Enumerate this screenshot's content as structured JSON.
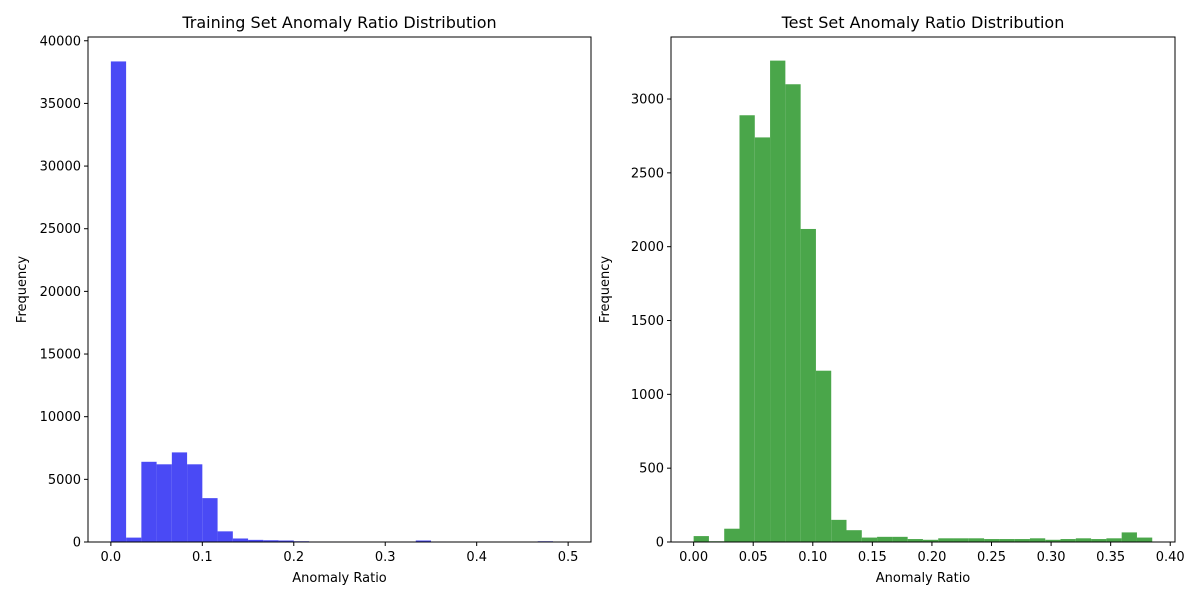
{
  "colors": {
    "train": "#4a4af5",
    "test": "#4aa64a",
    "axis": "#000000"
  },
  "chart_data": [
    {
      "type": "bar",
      "title": "Training Set Anomaly Ratio Distribution",
      "xlabel": "Anomaly Ratio",
      "ylabel": "Frequency",
      "xlim": [
        -0.025,
        0.525
      ],
      "ylim": [
        0,
        40300
      ],
      "xticks": [
        0.0,
        0.1,
        0.2,
        0.3,
        0.4,
        0.5
      ],
      "xtick_labels": [
        "0.0",
        "0.1",
        "0.2",
        "0.3",
        "0.4",
        "0.5"
      ],
      "yticks": [
        0,
        5000,
        10000,
        15000,
        20000,
        25000,
        30000,
        35000,
        40000
      ],
      "ytick_labels": [
        "0",
        "5000",
        "10000",
        "15000",
        "20000",
        "25000",
        "30000",
        "35000",
        "40000"
      ],
      "bin_start": 0.0,
      "bin_width": 0.01667,
      "values": [
        38350,
        350,
        6400,
        6200,
        7150,
        6200,
        3500,
        850,
        280,
        170,
        140,
        120,
        60,
        40,
        40,
        30,
        30,
        30,
        30,
        40,
        120,
        40,
        20,
        15,
        10,
        10,
        10,
        10,
        60,
        5
      ],
      "color": "#4a4af5"
    },
    {
      "type": "bar",
      "title": "Test Set Anomaly Ratio Distribution",
      "xlabel": "Anomaly Ratio",
      "ylabel": "Frequency",
      "xlim": [
        -0.019,
        0.404
      ],
      "ylim": [
        0,
        3420
      ],
      "xticks": [
        0.0,
        0.05,
        0.1,
        0.15,
        0.2,
        0.25,
        0.3,
        0.35,
        0.4
      ],
      "xtick_labels": [
        "0.00",
        "0.05",
        "0.10",
        "0.15",
        "0.20",
        "0.25",
        "0.30",
        "0.35",
        "0.40"
      ],
      "yticks": [
        0,
        500,
        1000,
        1500,
        2000,
        2500,
        3000
      ],
      "ytick_labels": [
        "0",
        "500",
        "1000",
        "1500",
        "2000",
        "2500",
        "3000"
      ],
      "bin_start": 0.0,
      "bin_width": 0.01283,
      "values": [
        40,
        5,
        90,
        2890,
        2740,
        3260,
        3100,
        2120,
        1160,
        150,
        80,
        30,
        35,
        35,
        20,
        15,
        25,
        25,
        25,
        20,
        20,
        20,
        25,
        15,
        20,
        25,
        20,
        25,
        65,
        30
      ],
      "color": "#4aa64a"
    }
  ]
}
